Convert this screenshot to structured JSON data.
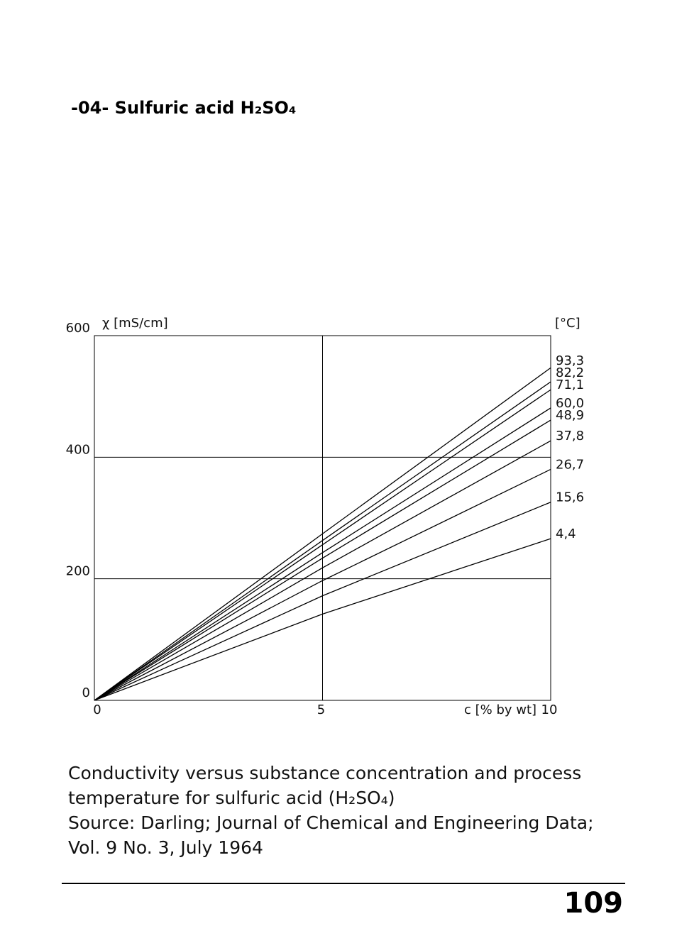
{
  "header": {
    "title": "-04- Sulfuric acid H₂SO₄"
  },
  "chart_data": {
    "type": "line",
    "y_label": "χ [mS/cm]",
    "x_label": "c [% by wt]",
    "legend_title": "[°C]",
    "x": [
      0,
      5,
      10
    ],
    "xlim": [
      0,
      10
    ],
    "xticks": [
      0,
      5,
      10
    ],
    "ylim": [
      0,
      600
    ],
    "yticks": [
      0,
      200,
      400,
      600
    ],
    "grid": true,
    "series": [
      {
        "name": "93,3",
        "color": "#000000",
        "values": [
          0,
          274,
          547
        ]
      },
      {
        "name": "82,2",
        "color": "#000000",
        "values": [
          0,
          263,
          524
        ]
      },
      {
        "name": "71,1",
        "color": "#000000",
        "values": [
          0,
          256,
          511
        ]
      },
      {
        "name": "60,0",
        "color": "#000000",
        "values": [
          0,
          243,
          481
        ]
      },
      {
        "name": "48,9",
        "color": "#000000",
        "values": [
          0,
          234,
          461
        ]
      },
      {
        "name": "37,8",
        "color": "#000000",
        "values": [
          0,
          218,
          427
        ]
      },
      {
        "name": "26,7",
        "color": "#000000",
        "values": [
          0,
          197,
          380
        ]
      },
      {
        "name": "15,6",
        "color": "#000000",
        "values": [
          0,
          172,
          326
        ]
      },
      {
        "name": "4,4",
        "color": "#000000",
        "values": [
          0,
          142,
          266
        ]
      }
    ]
  },
  "caption": [
    "Conductivity versus substance concentration and process",
    "temperature for sulfuric acid (H₂SO₄)",
    "Source: Darling; Journal of Chemical and Engineering Data;",
    "Vol. 9 No. 3, July 1964"
  ],
  "footer": {
    "page_number": "109"
  }
}
